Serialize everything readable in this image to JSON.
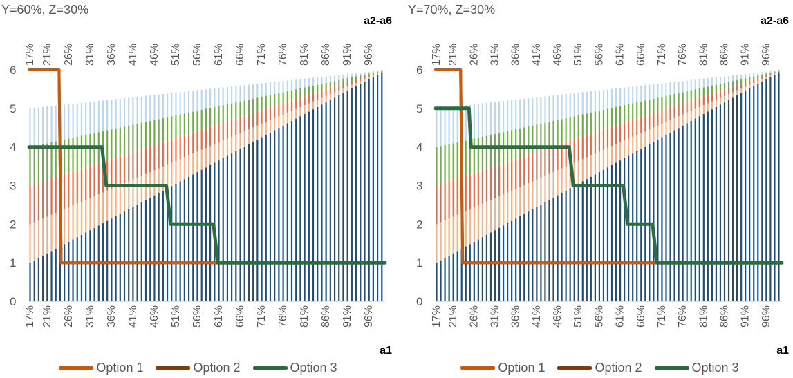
{
  "colors": {
    "band1": "#1f4e79",
    "band2": "#f4b183",
    "band3": "#e26b4a",
    "band4": "#70ad47",
    "band5": "#bdd7ee",
    "band6": "#ffffff",
    "option1": "#c55a11",
    "option2": "#843c0c",
    "option3": "#2e6b43",
    "text": "#595959"
  },
  "chart_data": [
    {
      "type": "line",
      "title": "Y=60%, Z=30%",
      "xlabel": "a1",
      "ylabel": "a2-a6",
      "x_tick_labels": [
        "17%",
        "21%",
        "26%",
        "31%",
        "36%",
        "41%",
        "46%",
        "51%",
        "56%",
        "61%",
        "66%",
        "71%",
        "76%",
        "81%",
        "86%",
        "91%",
        "96%"
      ],
      "x_tick_values": [
        17,
        21,
        26,
        31,
        36,
        41,
        46,
        51,
        56,
        61,
        66,
        71,
        76,
        81,
        86,
        91,
        96
      ],
      "xlim": [
        17,
        100
      ],
      "y_ticks": [
        0,
        1,
        2,
        3,
        4,
        5,
        6
      ],
      "ylim": [
        0,
        6
      ],
      "background_bands": "a_k lines: a_k = 1 + (k-1)*(1 - a1)/0.83 ... striped fill",
      "series": [
        {
          "name": "Option 1",
          "color_key": "option1",
          "x": [
            17,
            24,
            24.5,
            100
          ],
          "y": [
            6,
            6,
            1,
            1
          ]
        },
        {
          "name": "Option 2",
          "color_key": "option2",
          "x": [
            17,
            24,
            24.5,
            100
          ],
          "y": [
            6,
            6,
            1,
            1
          ]
        },
        {
          "name": "Option 3",
          "color_key": "option3",
          "x": [
            17,
            34,
            35,
            49,
            50,
            60,
            61,
            100
          ],
          "y": [
            4,
            4,
            3,
            3,
            2,
            2,
            1,
            1
          ]
        }
      ]
    },
    {
      "type": "line",
      "title": "Y=70%, Z=30%",
      "xlabel": "a1",
      "ylabel": "a2-a6",
      "x_tick_labels": [
        "17%",
        "21%",
        "26%",
        "31%",
        "36%",
        "41%",
        "46%",
        "51%",
        "56%",
        "61%",
        "66%",
        "71%",
        "76%",
        "81%",
        "86%",
        "91%",
        "96%"
      ],
      "x_tick_values": [
        17,
        21,
        26,
        31,
        36,
        41,
        46,
        51,
        56,
        61,
        66,
        71,
        76,
        81,
        86,
        91,
        96
      ],
      "xlim": [
        17,
        100
      ],
      "y_ticks": [
        0,
        1,
        2,
        3,
        4,
        5,
        6
      ],
      "ylim": [
        0,
        6
      ],
      "series": [
        {
          "name": "Option 1",
          "color_key": "option1",
          "x": [
            17,
            23,
            23.5,
            100
          ],
          "y": [
            6,
            6,
            1,
            1
          ]
        },
        {
          "name": "Option 2",
          "color_key": "option2",
          "x": [
            17,
            23,
            23.5,
            70,
            70.5,
            100
          ],
          "y": [
            6,
            6,
            1,
            1,
            1,
            1
          ]
        },
        {
          "name": "Option 3",
          "color_key": "option3",
          "x": [
            17,
            25,
            25.5,
            49,
            50,
            62,
            63,
            69,
            70,
            100
          ],
          "y": [
            5,
            5,
            4,
            4,
            3,
            3,
            2,
            2,
            1,
            1
          ]
        }
      ]
    }
  ],
  "legend": [
    {
      "label": "Option 1",
      "color_key": "option1"
    },
    {
      "label": "Option 2",
      "color_key": "option2"
    },
    {
      "label": "Option 3",
      "color_key": "option3"
    }
  ]
}
